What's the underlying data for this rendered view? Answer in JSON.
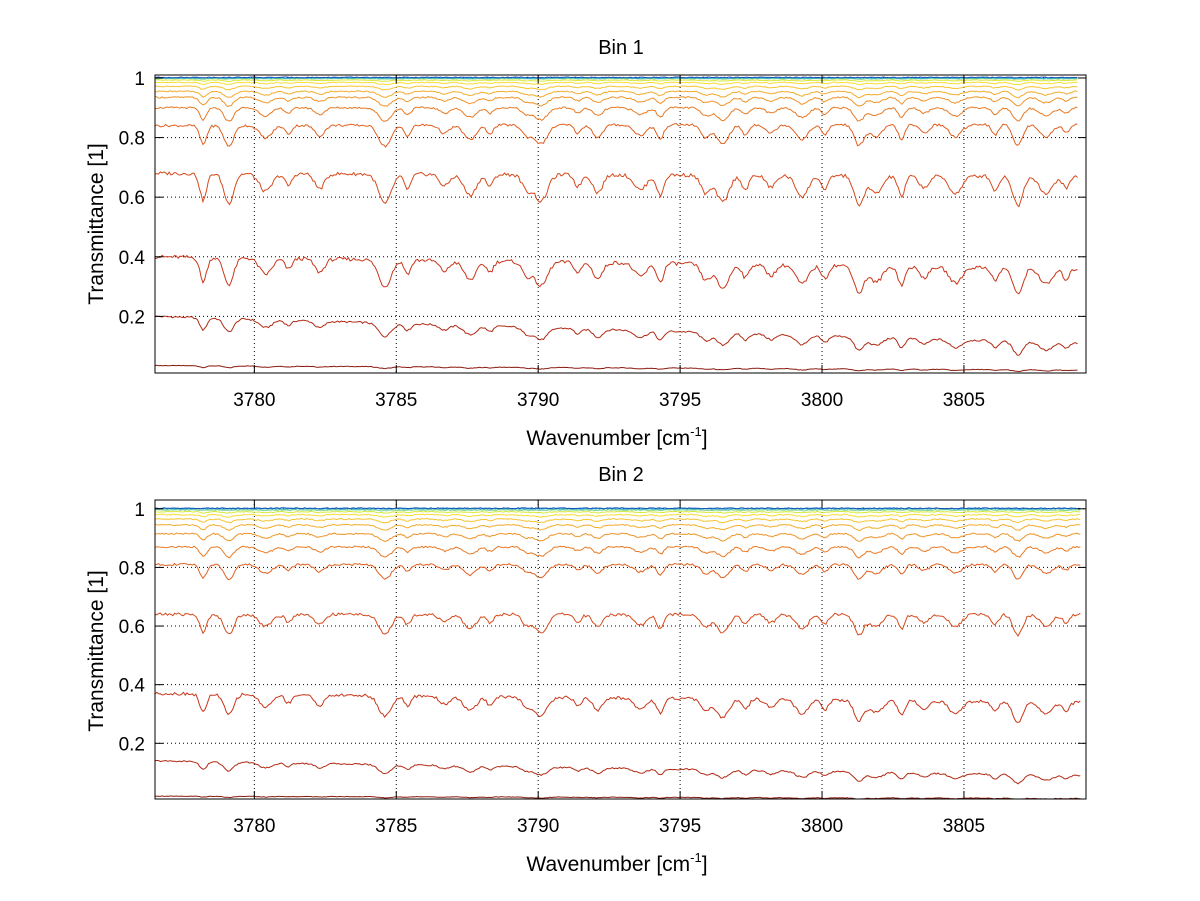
{
  "chart_data": [
    {
      "type": "line",
      "title": "Bin 1",
      "xlabel": "Wavenumber [cm",
      "xlabel_sup": "-1",
      "xlabel_end": "]",
      "ylabel": "Transmittance [1]",
      "xlim": [
        3776.5,
        3809.3
      ],
      "ylim": [
        0.01,
        1.01
      ],
      "xticks": [
        3780,
        3785,
        3790,
        3795,
        3800,
        3805
      ],
      "yticks": [
        0.2,
        0.4,
        0.6,
        0.8,
        1
      ],
      "xtick_labels": [
        "3780",
        "3785",
        "3790",
        "3795",
        "3800",
        "3805"
      ],
      "ytick_labels": [
        "0.2",
        "0.4",
        "0.6",
        "0.8",
        "1"
      ],
      "grid": true,
      "legend": "none",
      "x_range": [
        3776.5,
        3809.0
      ],
      "series": [
        {
          "color": "#8b1a10",
          "baseline": 0.035,
          "depth": 0.006,
          "noise": 0.002,
          "end": 0.02
        },
        {
          "color": "#b02a14",
          "baseline": 0.2,
          "depth": 0.045,
          "noise": 0.006,
          "end": 0.11
        },
        {
          "color": "#c8361a",
          "baseline": 0.4,
          "depth": 0.09,
          "noise": 0.012,
          "end": 0.36
        },
        {
          "color": "#d64a1c",
          "baseline": 0.68,
          "depth": 0.1,
          "noise": 0.012,
          "end": 0.67
        },
        {
          "color": "#e06020",
          "baseline": 0.84,
          "depth": 0.07,
          "noise": 0.008,
          "end": 0.845
        },
        {
          "color": "#e87a24",
          "baseline": 0.9,
          "depth": 0.045,
          "noise": 0.006,
          "end": 0.9
        },
        {
          "color": "#ee9428",
          "baseline": 0.935,
          "depth": 0.03,
          "noise": 0.005,
          "end": 0.935
        },
        {
          "color": "#f2ac2c",
          "baseline": 0.955,
          "depth": 0.02,
          "noise": 0.004,
          "end": 0.955
        },
        {
          "color": "#f6c430",
          "baseline": 0.972,
          "depth": 0.012,
          "noise": 0.003,
          "end": 0.972
        },
        {
          "color": "#f8dc34",
          "baseline": 0.985,
          "depth": 0.007,
          "noise": 0.003,
          "end": 0.985
        },
        {
          "color": "#d8e83a",
          "baseline": 0.993,
          "depth": 0.004,
          "noise": 0.002,
          "end": 0.993
        },
        {
          "color": "#7ed68a",
          "baseline": 0.998,
          "depth": 0.002,
          "noise": 0.002,
          "end": 0.998
        },
        {
          "color": "#30b0d8",
          "baseline": 1.0,
          "depth": 0.001,
          "noise": 0.003,
          "end": 1.0
        },
        {
          "color": "#1450b8",
          "baseline": 1.002,
          "depth": 0.0005,
          "noise": 0.003,
          "end": 1.002
        }
      ]
    },
    {
      "type": "line",
      "title": "Bin 2",
      "xlabel": "Wavenumber [cm",
      "xlabel_sup": "-1",
      "xlabel_end": "]",
      "ylabel": "Transmittance [1]",
      "xlim": [
        3776.5,
        3809.3
      ],
      "ylim": [
        0.01,
        1.03
      ],
      "xticks": [
        3780,
        3785,
        3790,
        3795,
        3800,
        3805
      ],
      "yticks": [
        0.2,
        0.4,
        0.6,
        0.8,
        1
      ],
      "xtick_labels": [
        "3780",
        "3785",
        "3790",
        "3795",
        "3800",
        "3805"
      ],
      "ytick_labels": [
        "0.2",
        "0.4",
        "0.6",
        "0.8",
        "1"
      ],
      "grid": true,
      "legend": "none",
      "x_range": [
        3776.5,
        3809.1
      ],
      "series": [
        {
          "color": "#8b1a10",
          "baseline": 0.02,
          "depth": 0.004,
          "noise": 0.002,
          "end": 0.012
        },
        {
          "color": "#b02a14",
          "baseline": 0.14,
          "depth": 0.03,
          "noise": 0.005,
          "end": 0.09
        },
        {
          "color": "#c8361a",
          "baseline": 0.37,
          "depth": 0.07,
          "noise": 0.01,
          "end": 0.34
        },
        {
          "color": "#d64a1c",
          "baseline": 0.64,
          "depth": 0.07,
          "noise": 0.01,
          "end": 0.64
        },
        {
          "color": "#e06020",
          "baseline": 0.81,
          "depth": 0.05,
          "noise": 0.007,
          "end": 0.81
        },
        {
          "color": "#e87a24",
          "baseline": 0.87,
          "depth": 0.035,
          "noise": 0.006,
          "end": 0.87
        },
        {
          "color": "#ee9428",
          "baseline": 0.915,
          "depth": 0.025,
          "noise": 0.005,
          "end": 0.915
        },
        {
          "color": "#f2ac2c",
          "baseline": 0.945,
          "depth": 0.018,
          "noise": 0.004,
          "end": 0.945
        },
        {
          "color": "#f6c430",
          "baseline": 0.965,
          "depth": 0.012,
          "noise": 0.004,
          "end": 0.965
        },
        {
          "color": "#f8dc34",
          "baseline": 0.98,
          "depth": 0.008,
          "noise": 0.004,
          "end": 0.98
        },
        {
          "color": "#d8e83a",
          "baseline": 0.99,
          "depth": 0.004,
          "noise": 0.003,
          "end": 0.99
        },
        {
          "color": "#7ed68a",
          "baseline": 0.996,
          "depth": 0.002,
          "noise": 0.003,
          "end": 0.996
        },
        {
          "color": "#30b0d8",
          "baseline": 1.0,
          "depth": 0.001,
          "noise": 0.003,
          "end": 1.0
        },
        {
          "color": "#1450b8",
          "baseline": 1.002,
          "depth": 0.0005,
          "noise": 0.003,
          "end": 1.002
        }
      ]
    }
  ]
}
